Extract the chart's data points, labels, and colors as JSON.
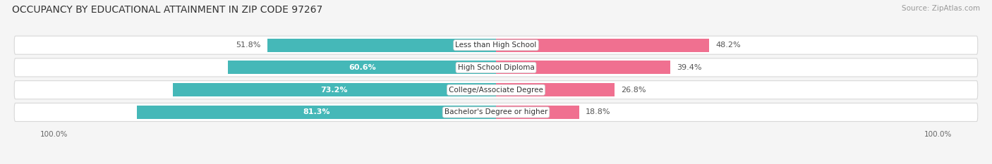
{
  "title": "OCCUPANCY BY EDUCATIONAL ATTAINMENT IN ZIP CODE 97267",
  "source": "Source: ZipAtlas.com",
  "categories": [
    "Less than High School",
    "High School Diploma",
    "College/Associate Degree",
    "Bachelor's Degree or higher"
  ],
  "owner_pct": [
    51.8,
    60.6,
    73.2,
    81.3
  ],
  "renter_pct": [
    48.2,
    39.4,
    26.8,
    18.8
  ],
  "owner_color": "#45b8b8",
  "renter_color": "#f07090",
  "fig_bg": "#f5f5f5",
  "row_bg": "#ffffff",
  "row_edge": "#d8d8d8",
  "title_fontsize": 10,
  "source_fontsize": 7.5,
  "label_fontsize": 8,
  "cat_fontsize": 7.5,
  "axis_fontsize": 7.5,
  "bar_height": 0.6,
  "xlim": 110
}
